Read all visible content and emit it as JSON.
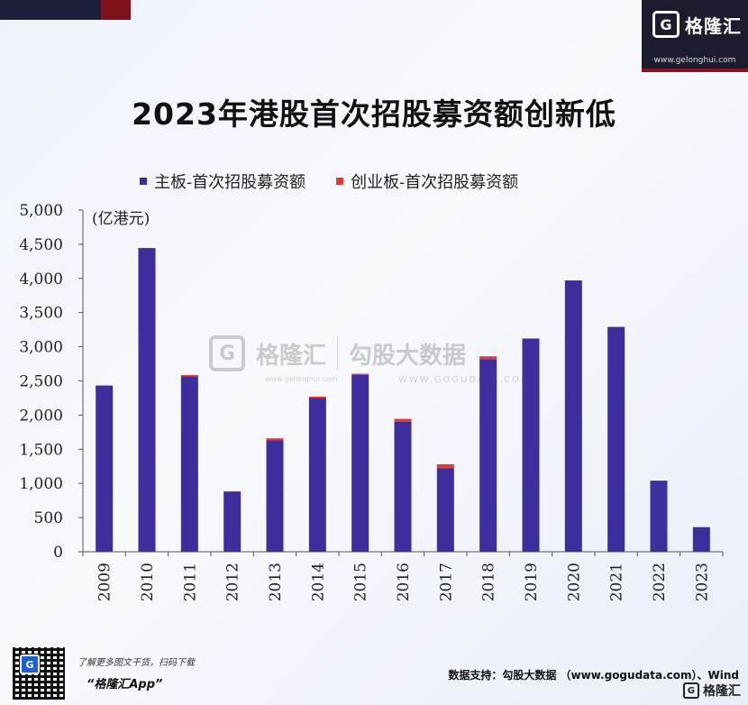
{
  "brand": {
    "logo_letter": "G",
    "name": "格隆汇",
    "url": "www.gelonghui.com"
  },
  "colors": {
    "main_board": "#3c2e9c",
    "gem_board": "#e53935",
    "brand_dark": "#1b1c2e",
    "brand_red": "#8c1421"
  },
  "watermark": {
    "logo_letter": "G",
    "brand": "格隆汇",
    "url": "www.gelonghui.com",
    "partner": "勾股大数据",
    "partner_url": "WWW.GOGUDATA.COM"
  },
  "chart_data": {
    "type": "bar",
    "stacked": true,
    "title": "2023年港股首次招股募资额创新低",
    "unit_label": "(亿港元)",
    "categories": [
      "2009",
      "2010",
      "2011",
      "2012",
      "2013",
      "2014",
      "2015",
      "2016",
      "2017",
      "2018",
      "2019",
      "2020",
      "2021",
      "2022",
      "2023"
    ],
    "series": [
      {
        "name": "主板-首次招股募资额",
        "color": "#3c2e9c",
        "values": [
          2430,
          4440,
          2570,
          880,
          1630,
          2250,
          2590,
          1900,
          1220,
          2820,
          3120,
          3970,
          3290,
          1040,
          360
        ]
      },
      {
        "name": "创业板-首次招股募资额",
        "color": "#e53935",
        "values": [
          5,
          6,
          15,
          5,
          30,
          20,
          15,
          45,
          60,
          40,
          0,
          0,
          0,
          0,
          0
        ]
      }
    ],
    "ylim": [
      0,
      5000
    ],
    "yticks": [
      "0",
      "500",
      "1,000",
      "1,500",
      "2,000",
      "2,500",
      "3,000",
      "3,500",
      "4,000",
      "4,500",
      "5,000"
    ],
    "ytick_values": [
      0,
      500,
      1000,
      1500,
      2000,
      2500,
      3000,
      3500,
      4000,
      4500,
      5000
    ],
    "legend_position": "top",
    "grid": false
  },
  "footer": {
    "qr_badge": "G",
    "promo_line": "了解更多图文干货，扫码下载",
    "app_name": "“格隆汇App”",
    "source": "数据支持：勾股大数据 （www.gogudata.com）、Wind",
    "brand_letter": "G",
    "brand_name": "格隆汇"
  }
}
